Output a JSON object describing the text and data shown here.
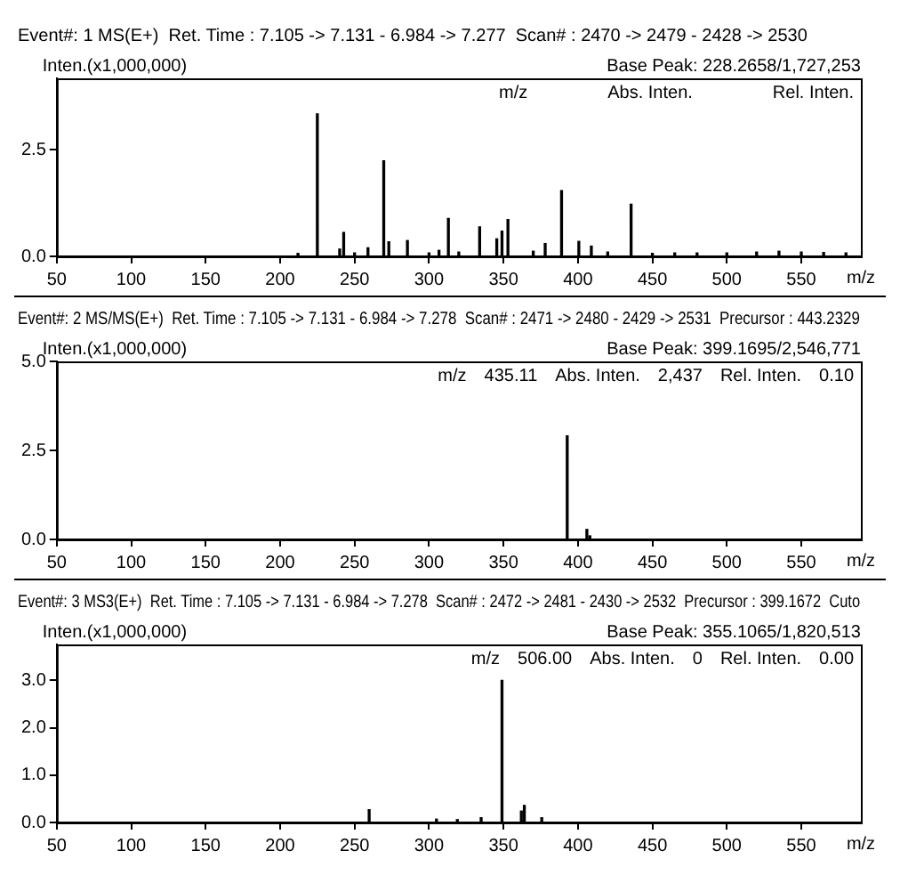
{
  "chart_data": [
    {
      "type": "bar",
      "title": "Event#: 1 MS(E+)  Ret. Time : 7.105 -> 7.131 - 6.984 -> 7.277  Scan# : 2470 -> 2479 - 2428 -> 2530",
      "ylabel": "Inten.(x1,000,000)",
      "xlabel": "m/z",
      "color": "#000000",
      "x": [
        212,
        225,
        240,
        242.7,
        250,
        259,
        269.6,
        273,
        285.5,
        300,
        306.7,
        313,
        320,
        334,
        345.5,
        349,
        353,
        370,
        378,
        389,
        400.6,
        409,
        420,
        435.7,
        450,
        465,
        480,
        500,
        520,
        535,
        550,
        565,
        580
      ],
      "values": [
        0.07,
        3.34,
        0.17,
        0.56,
        0.08,
        0.2,
        2.24,
        0.34,
        0.37,
        0.08,
        0.14,
        0.89,
        0.1,
        0.69,
        0.41,
        0.59,
        0.86,
        0.12,
        0.3,
        1.54,
        0.35,
        0.24,
        0.1,
        1.22,
        0.07,
        0.08,
        0.08,
        0.08,
        0.1,
        0.12,
        0.1,
        0.09,
        0.08
      ],
      "xlim": [
        50,
        590
      ],
      "xticks": [
        50,
        100,
        150,
        200,
        250,
        300,
        350,
        400,
        450,
        500,
        550
      ],
      "ylim": [
        0,
        4.17
      ],
      "yticks": [
        {
          "value": 0,
          "label": "0.0"
        },
        {
          "value": 2.5,
          "label": "2.5"
        }
      ],
      "annotations": [
        "Base Peak: 228.2658/1,727,253",
        "m/z",
        "Abs. Inten.",
        "Rel. Inten."
      ]
    },
    {
      "type": "bar",
      "title": "Event#: 2 MS/MS(E+)  Ret. Time : 7.105 -> 7.131 - 6.984 -> 7.278  Scan# : 2471 -> 2480 - 2429 -> 2531  Precursor : 443.2329",
      "ylabel": "Inten.(x1,000,000)",
      "xlabel": "m/z",
      "color": "#000000",
      "x": [
        392.8,
        406,
        408
      ],
      "values": [
        2.91,
        0.28,
        0.1
      ],
      "xlim": [
        50,
        590
      ],
      "xticks": [
        50,
        100,
        150,
        200,
        250,
        300,
        350,
        400,
        450,
        500,
        550
      ],
      "ylim": [
        0,
        5
      ],
      "yticks": [
        {
          "value": 0,
          "label": "0.0"
        },
        {
          "value": 2.5,
          "label": "2.5"
        },
        {
          "value": 5,
          "label": "5.0"
        }
      ],
      "annotations": [
        "Base Peak: 399.1695/2,546,771",
        "m/z",
        "435.11",
        "Abs. Inten.",
        "2,437",
        "Rel. Inten.",
        "0.10"
      ]
    },
    {
      "type": "bar",
      "title": "Event#: 3 MS3(E+)  Ret. Time : 7.105 -> 7.131 - 6.984 -> 7.278  Scan# : 2472 -> 2481 - 2430 -> 2532  Precursor : 399.1672  Cuto",
      "ylabel": "Inten.(x1,000,000)",
      "xlabel": "m/z",
      "color": "#000000",
      "x": [
        259.8,
        305,
        319,
        335,
        349,
        362,
        364,
        375.7
      ],
      "values": [
        0.27,
        0.07,
        0.06,
        0.1,
        3.0,
        0.24,
        0.36,
        0.1
      ],
      "xlim": [
        50,
        590
      ],
      "xticks": [
        50,
        100,
        150,
        200,
        250,
        300,
        350,
        400,
        450,
        500,
        550
      ],
      "ylim": [
        0,
        3.76
      ],
      "yticks": [
        {
          "value": 0,
          "label": "0.0"
        },
        {
          "value": 1,
          "label": "1.0"
        },
        {
          "value": 2,
          "label": "2.0"
        },
        {
          "value": 3,
          "label": "3.0"
        }
      ],
      "annotations": [
        "Base Peak: 355.1065/1,820,513",
        "m/z",
        "506.00",
        "Abs. Inten.",
        "0",
        "Rel. Inten.",
        "0.00"
      ]
    }
  ]
}
